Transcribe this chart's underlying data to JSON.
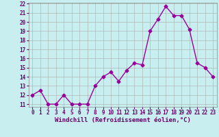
{
  "x": [
    0,
    1,
    2,
    3,
    4,
    5,
    6,
    7,
    8,
    9,
    10,
    11,
    12,
    13,
    14,
    15,
    16,
    17,
    18,
    19,
    20,
    21,
    22,
    23
  ],
  "y": [
    12,
    12.5,
    11,
    11,
    12,
    11,
    11,
    11,
    13,
    14,
    14.5,
    13.5,
    14.7,
    15.5,
    15.3,
    19,
    20.3,
    21.7,
    20.7,
    20.7,
    19.2,
    15.5,
    15,
    14
  ],
  "line_color": "#990099",
  "marker": "D",
  "marker_size": 2.5,
  "bg_color": "#c8eef0",
  "grid_color": "#aaaaaa",
  "xlabel": "Windchill (Refroidissement éolien,°C)",
  "ylim_min": 11,
  "ylim_max": 22,
  "xlim_min": 0,
  "xlim_max": 23,
  "yticks": [
    11,
    12,
    13,
    14,
    15,
    16,
    17,
    18,
    19,
    20,
    21,
    22
  ],
  "xticks": [
    0,
    1,
    2,
    3,
    4,
    5,
    6,
    7,
    8,
    9,
    10,
    11,
    12,
    13,
    14,
    15,
    16,
    17,
    18,
    19,
    20,
    21,
    22,
    23
  ],
  "tick_fontsize": 5.5,
  "xlabel_fontsize": 6.5,
  "label_color": "#660066",
  "spine_color": "#888888",
  "linewidth": 1.0
}
